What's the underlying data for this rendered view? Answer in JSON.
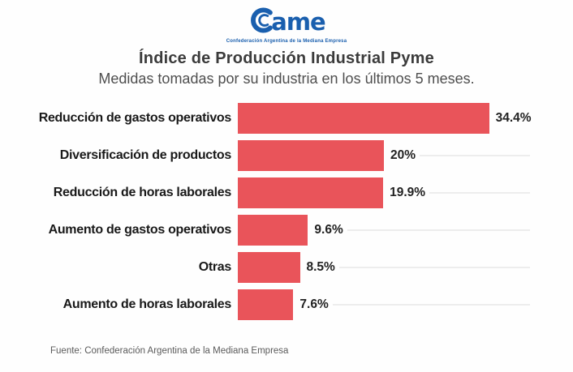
{
  "logo": {
    "brand_text": "ame",
    "tagline": "Confederación Argentina de la Mediana Empresa",
    "brand_color": "#1a5fae"
  },
  "header": {
    "title": "Índice de Producción Industrial Pyme",
    "subtitle": "Medidas tomadas por su industria en los últimos 5 meses."
  },
  "chart_data": {
    "type": "bar",
    "orientation": "horizontal",
    "title": "Índice de Producción Industrial Pyme",
    "subtitle": "Medidas tomadas por su industria en los últimos 5 meses.",
    "categories": [
      "Reducción de gastos operativos",
      "Diversificación de productos",
      "Reducción de horas laborales",
      "Aumento de gastos operativos",
      "Otras",
      "Aumento de horas laborales"
    ],
    "values": [
      34.4,
      20,
      19.9,
      9.6,
      8.5,
      7.6
    ],
    "value_labels": [
      "34.4%",
      "20%",
      "19.9%",
      "9.6%",
      "8.5%",
      "7.6%"
    ],
    "xlim": [
      0,
      40
    ],
    "grid": "faint horizontal line per row",
    "legend": false,
    "bar_color": "#e9545a",
    "gridline_color": "#ededed"
  },
  "footer": {
    "source": "Fuente: Confederación Argentina de la Mediana Empresa"
  }
}
